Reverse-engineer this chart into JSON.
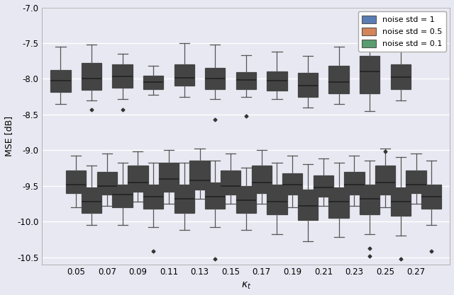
{
  "kappa_values": [
    0.05,
    0.07,
    0.09,
    0.11,
    0.13,
    0.15,
    0.17,
    0.19,
    0.21,
    0.23,
    0.25,
    0.27
  ],
  "xlabel": "$\\kappa_t$",
  "ylabel": "MSE [dB]",
  "ylim": [
    -10.6,
    -7.0
  ],
  "yticks": [
    -10.5,
    -10.0,
    -9.5,
    -9.0,
    -8.5,
    -8.0,
    -7.5,
    -7.0
  ],
  "bg_color": "#e8e8f2",
  "fig_color": "#e8e8f2",
  "colors": {
    "blue": "#5b7db5",
    "orange": "#d4845a",
    "green": "#5a9e6f"
  },
  "legend_labels": [
    "noise std = 1",
    "noise std = 0.5",
    "noise std = 0.1"
  ],
  "noise1_data": [
    {
      "med": -8.03,
      "q1": -8.18,
      "q3": -7.88,
      "whislo": -8.35,
      "whishi": -7.55,
      "fliers": []
    },
    {
      "med": -8.0,
      "q1": -8.15,
      "q3": -7.78,
      "whislo": -8.3,
      "whishi": -7.52,
      "fliers": [
        -8.43
      ]
    },
    {
      "med": -7.97,
      "q1": -8.12,
      "q3": -7.8,
      "whislo": -8.28,
      "whishi": -7.65,
      "fliers": [
        -8.43
      ]
    },
    {
      "med": -8.05,
      "q1": -8.14,
      "q3": -7.96,
      "whislo": -8.22,
      "whishi": -7.82,
      "fliers": []
    },
    {
      "med": -7.99,
      "q1": -8.1,
      "q3": -7.8,
      "whislo": -8.25,
      "whishi": -7.5,
      "fliers": []
    },
    {
      "med": -8.0,
      "q1": -8.14,
      "q3": -7.85,
      "whislo": -8.28,
      "whishi": -7.52,
      "fliers": [
        -8.57
      ]
    },
    {
      "med": -8.02,
      "q1": -8.14,
      "q3": -7.91,
      "whislo": -8.25,
      "whishi": -7.67,
      "fliers": [
        -8.52
      ]
    },
    {
      "med": -8.03,
      "q1": -8.16,
      "q3": -7.9,
      "whislo": -8.28,
      "whishi": -7.62,
      "fliers": []
    },
    {
      "med": -8.1,
      "q1": -8.25,
      "q3": -7.92,
      "whislo": -8.4,
      "whishi": -7.68,
      "fliers": []
    },
    {
      "med": -8.05,
      "q1": -8.2,
      "q3": -7.82,
      "whislo": -8.35,
      "whishi": -7.55,
      "fliers": []
    },
    {
      "med": -7.9,
      "q1": -8.2,
      "q3": -7.68,
      "whislo": -8.45,
      "whishi": -7.32,
      "fliers": []
    },
    {
      "med": -7.98,
      "q1": -8.14,
      "q3": -7.8,
      "whislo": -8.3,
      "whishi": -7.55,
      "fliers": []
    }
  ],
  "noise05_data": [
    {
      "med": -9.48,
      "q1": -9.6,
      "q3": -9.28,
      "whislo": -9.8,
      "whishi": -9.08,
      "fliers": []
    },
    {
      "med": -9.5,
      "q1": -9.62,
      "q3": -9.3,
      "whislo": -9.78,
      "whishi": -9.05,
      "fliers": []
    },
    {
      "med": -9.45,
      "q1": -9.58,
      "q3": -9.22,
      "whislo": -9.72,
      "whishi": -9.02,
      "fliers": []
    },
    {
      "med": -9.4,
      "q1": -9.58,
      "q3": -9.18,
      "whislo": -9.75,
      "whishi": -9.0,
      "fliers": []
    },
    {
      "med": -9.42,
      "q1": -9.55,
      "q3": -9.15,
      "whislo": -9.68,
      "whishi": -8.98,
      "fliers": []
    },
    {
      "med": -9.5,
      "q1": -9.62,
      "q3": -9.28,
      "whislo": -9.75,
      "whishi": -9.05,
      "fliers": []
    },
    {
      "med": -9.45,
      "q1": -9.6,
      "q3": -9.22,
      "whislo": -9.75,
      "whishi": -9.0,
      "fliers": []
    },
    {
      "med": -9.48,
      "q1": -9.62,
      "q3": -9.32,
      "whislo": -9.8,
      "whishi": -9.08,
      "fliers": []
    },
    {
      "med": -9.52,
      "q1": -9.65,
      "q3": -9.35,
      "whislo": -9.78,
      "whishi": -9.12,
      "fliers": []
    },
    {
      "med": -9.48,
      "q1": -9.62,
      "q3": -9.3,
      "whislo": -9.78,
      "whishi": -9.08,
      "fliers": []
    },
    {
      "med": -9.45,
      "q1": -9.62,
      "q3": -9.22,
      "whislo": -9.8,
      "whishi": -8.98,
      "fliers": [
        -9.02
      ]
    },
    {
      "med": -9.48,
      "q1": -9.6,
      "q3": -9.28,
      "whislo": -9.75,
      "whishi": -9.05,
      "fliers": []
    }
  ],
  "noise01_data": [
    {
      "med": -9.72,
      "q1": -9.88,
      "q3": -9.52,
      "whislo": -10.05,
      "whishi": -9.22,
      "fliers": []
    },
    {
      "med": -9.62,
      "q1": -9.8,
      "q3": -9.48,
      "whislo": -10.05,
      "whishi": -9.18,
      "fliers": []
    },
    {
      "med": -9.65,
      "q1": -9.82,
      "q3": -9.48,
      "whislo": -10.08,
      "whishi": -9.18,
      "fliers": [
        -10.42
      ]
    },
    {
      "med": -9.68,
      "q1": -9.88,
      "q3": -9.48,
      "whislo": -10.12,
      "whishi": -9.18,
      "fliers": []
    },
    {
      "med": -9.65,
      "q1": -9.82,
      "q3": -9.45,
      "whislo": -10.08,
      "whishi": -9.15,
      "fliers": [
        -10.52
      ]
    },
    {
      "med": -9.7,
      "q1": -9.88,
      "q3": -9.5,
      "whislo": -10.12,
      "whishi": -9.25,
      "fliers": []
    },
    {
      "med": -9.72,
      "q1": -9.9,
      "q3": -9.48,
      "whislo": -10.18,
      "whishi": -9.18,
      "fliers": []
    },
    {
      "med": -9.78,
      "q1": -9.98,
      "q3": -9.55,
      "whislo": -10.28,
      "whishi": -9.2,
      "fliers": []
    },
    {
      "med": -9.72,
      "q1": -9.95,
      "q3": -9.52,
      "whislo": -10.22,
      "whishi": -9.18,
      "fliers": []
    },
    {
      "med": -9.68,
      "q1": -9.9,
      "q3": -9.48,
      "whislo": -10.18,
      "whishi": -9.15,
      "fliers": [
        -10.38,
        -10.48
      ]
    },
    {
      "med": -9.72,
      "q1": -9.92,
      "q3": -9.52,
      "whislo": -10.2,
      "whishi": -9.1,
      "fliers": [
        -10.52
      ]
    },
    {
      "med": -9.65,
      "q1": -9.82,
      "q3": -9.48,
      "whislo": -10.05,
      "whishi": -9.15,
      "fliers": [
        -10.42
      ]
    }
  ]
}
